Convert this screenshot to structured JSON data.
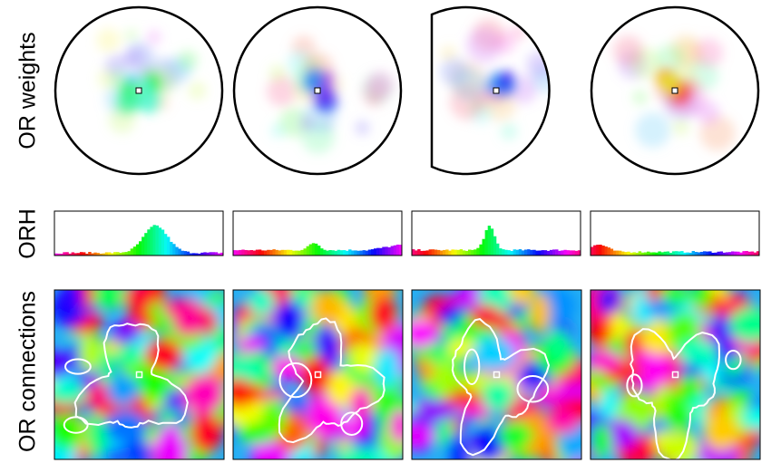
{
  "figure": {
    "row_labels": [
      "OR weights",
      "ORH",
      "OR connections"
    ]
  }
}
